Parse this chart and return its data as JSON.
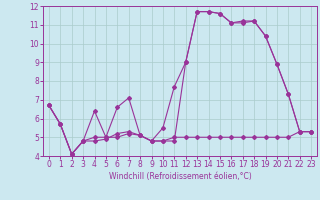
{
  "title": "",
  "xlabel": "Windchill (Refroidissement éolien,°C)",
  "ylabel": "",
  "background_color": "#cce8f0",
  "grid_color": "#aacccc",
  "line_color": "#993399",
  "xlim": [
    -0.5,
    23.5
  ],
  "ylim": [
    4,
    12
  ],
  "xticks": [
    0,
    1,
    2,
    3,
    4,
    5,
    6,
    7,
    8,
    9,
    10,
    11,
    12,
    13,
    14,
    15,
    16,
    17,
    18,
    19,
    20,
    21,
    22,
    23
  ],
  "yticks": [
    4,
    5,
    6,
    7,
    8,
    9,
    10,
    11,
    12
  ],
  "series1_x": [
    0,
    1,
    2,
    3,
    4,
    5,
    6,
    7,
    8,
    9,
    10,
    11,
    12,
    13,
    14,
    15,
    16,
    17,
    18,
    19,
    20,
    21,
    22,
    23
  ],
  "series1_y": [
    6.7,
    5.7,
    4.1,
    4.8,
    6.4,
    5.0,
    6.6,
    7.1,
    5.1,
    4.8,
    4.8,
    4.8,
    9.0,
    11.7,
    11.7,
    11.6,
    11.1,
    11.1,
    11.2,
    10.4,
    8.9,
    7.3,
    5.3,
    5.3
  ],
  "series2_x": [
    0,
    1,
    2,
    3,
    4,
    5,
    6,
    7,
    8,
    9,
    10,
    11,
    12,
    13,
    14,
    15,
    16,
    17,
    18,
    19,
    20,
    21,
    22,
    23
  ],
  "series2_y": [
    6.7,
    5.7,
    4.1,
    4.8,
    5.0,
    5.0,
    5.0,
    5.2,
    5.1,
    4.8,
    4.8,
    5.0,
    5.0,
    5.0,
    5.0,
    5.0,
    5.0,
    5.0,
    5.0,
    5.0,
    5.0,
    5.0,
    5.3,
    5.3
  ],
  "series3_x": [
    0,
    1,
    2,
    3,
    4,
    5,
    6,
    7,
    8,
    9,
    10,
    11,
    12,
    13,
    14,
    15,
    16,
    17,
    18,
    19,
    20,
    21,
    22,
    23
  ],
  "series3_y": [
    6.7,
    5.7,
    4.1,
    4.8,
    4.8,
    4.9,
    5.2,
    5.3,
    5.1,
    4.8,
    5.5,
    7.7,
    9.0,
    11.7,
    11.7,
    11.6,
    11.1,
    11.2,
    11.2,
    10.4,
    8.9,
    7.3,
    5.3,
    5.3
  ],
  "marker": "D",
  "markersize": 2,
  "linewidth": 0.8,
  "tick_fontsize": 5.5,
  "xlabel_fontsize": 5.5
}
